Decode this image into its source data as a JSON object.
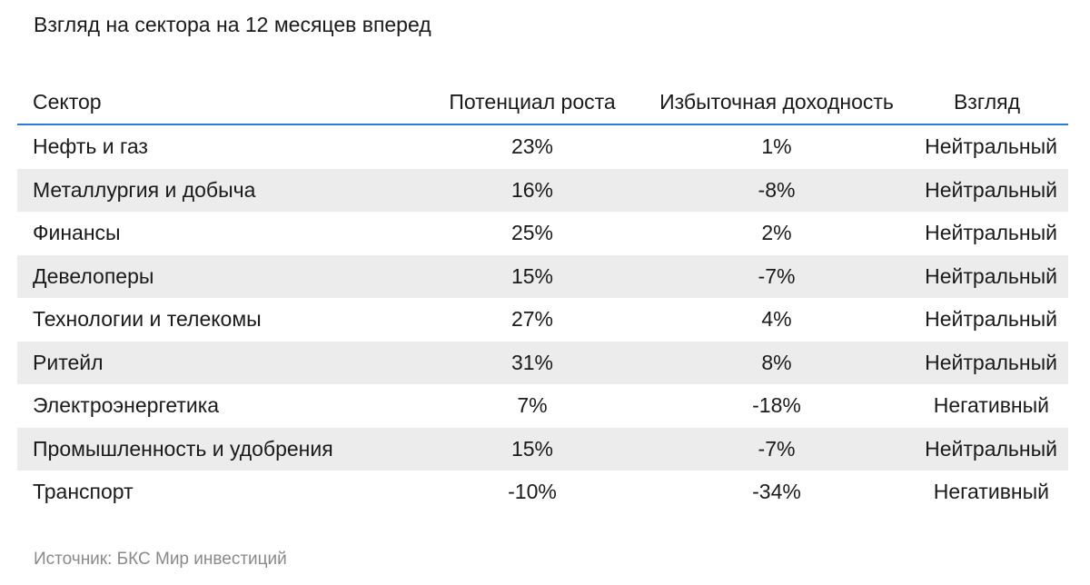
{
  "title": "Взгляд на сектора на 12 месяцев вперед",
  "table": {
    "headers": {
      "sector": "Сектор",
      "potential": "Потенциал роста",
      "excess": "Избыточная доходность",
      "view": "Взгляд"
    },
    "rows": [
      {
        "sector": "Нефть и газ",
        "potential": "23%",
        "excess": "1%",
        "view": "Нейтральный"
      },
      {
        "sector": "Металлургия и добыча",
        "potential": "16%",
        "excess": "-8%",
        "view": "Нейтральный"
      },
      {
        "sector": "Финансы",
        "potential": "25%",
        "excess": "2%",
        "view": "Нейтральный"
      },
      {
        "sector": "Девелоперы",
        "potential": "15%",
        "excess": "-7%",
        "view": "Нейтральный"
      },
      {
        "sector": "Технологии и телекомы",
        "potential": "27%",
        "excess": "4%",
        "view": "Нейтральный"
      },
      {
        "sector": "Ритейл",
        "potential": "31%",
        "excess": "8%",
        "view": "Нейтральный"
      },
      {
        "sector": "Электроэнергетика",
        "potential": "7%",
        "excess": "-18%",
        "view": "Негативный"
      },
      {
        "sector": "Промышленность и удобрения",
        "potential": "15%",
        "excess": "-7%",
        "view": "Нейтральный"
      },
      {
        "sector": "Транспорт",
        "potential": "-10%",
        "excess": "-34%",
        "view": "Негативный"
      }
    ]
  },
  "source": "Источник: БКС Мир инвестиций",
  "colors": {
    "header_rule": "#2f7bd6",
    "row_shade": "#ececec",
    "source_text": "#8a8a8a"
  }
}
